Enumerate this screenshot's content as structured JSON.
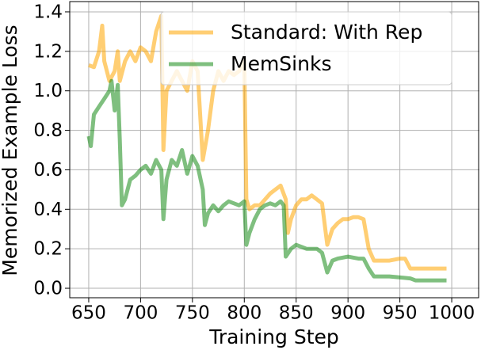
{
  "chart_data": {
    "type": "line",
    "xlabel": "Training Step",
    "ylabel": "Memorized Example Loss",
    "xlim": [
      631.7,
      1026.7
    ],
    "ylim": [
      -0.048,
      1.452
    ],
    "xticks": [
      650,
      700,
      750,
      800,
      850,
      900,
      950,
      1000
    ],
    "yticks": [
      {
        "value": 0,
        "label": "0.0"
      },
      0.2,
      0.4,
      0.6,
      0.8,
      {
        "value": 1,
        "label": "1.0"
      },
      1.2,
      1.4
    ],
    "grid": true,
    "legend": "upper right",
    "series": [
      {
        "name": "Standard: With Rep",
        "color": "#ffa500",
        "x": [
          650,
          655,
          660,
          663,
          665,
          670,
          675,
          678,
          680,
          685,
          690,
          695,
          700,
          705,
          710,
          715,
          720,
          722,
          725,
          730,
          735,
          740,
          745,
          750,
          755,
          760,
          765,
          770,
          775,
          780,
          785,
          790,
          795,
          800,
          802,
          805,
          810,
          815,
          820,
          825,
          830,
          835,
          840,
          842,
          845,
          850,
          855,
          860,
          865,
          870,
          875,
          880,
          885,
          890,
          895,
          900,
          905,
          910,
          915,
          920,
          925,
          930,
          940,
          950,
          955,
          960,
          970,
          980,
          995
        ],
        "values": [
          1.13,
          1.12,
          1.2,
          1.33,
          1.15,
          1.05,
          1.1,
          1.2,
          1.05,
          1.15,
          1.2,
          1.15,
          1.22,
          1.2,
          1.15,
          1.3,
          1.38,
          0.7,
          1.0,
          1.05,
          1.1,
          1.05,
          1.0,
          1.15,
          1.1,
          0.65,
          0.8,
          1.0,
          1.1,
          1.05,
          1.1,
          1.08,
          1.1,
          1.15,
          0.45,
          0.4,
          0.42,
          0.42,
          0.45,
          0.48,
          0.5,
          0.52,
          0.45,
          0.28,
          0.35,
          0.42,
          0.45,
          0.45,
          0.47,
          0.45,
          0.43,
          0.22,
          0.3,
          0.33,
          0.35,
          0.35,
          0.36,
          0.36,
          0.35,
          0.2,
          0.14,
          0.14,
          0.14,
          0.15,
          0.15,
          0.1,
          0.1,
          0.1,
          0.1
        ]
      },
      {
        "name": "MemSinks",
        "color": "#008000",
        "x": [
          650,
          652,
          655,
          660,
          665,
          670,
          672,
          675,
          678,
          680,
          682,
          685,
          690,
          695,
          700,
          705,
          710,
          715,
          720,
          722,
          725,
          730,
          735,
          740,
          745,
          750,
          755,
          760,
          762,
          765,
          770,
          775,
          780,
          785,
          790,
          795,
          800,
          802,
          805,
          810,
          815,
          820,
          825,
          830,
          835,
          838,
          840,
          845,
          850,
          855,
          860,
          865,
          870,
          875,
          880,
          885,
          890,
          900,
          910,
          915,
          920,
          925,
          940,
          960,
          965,
          980,
          995
        ],
        "values": [
          0.77,
          0.72,
          0.88,
          0.92,
          0.96,
          1.0,
          1.05,
          0.9,
          1.03,
          0.75,
          0.42,
          0.45,
          0.55,
          0.57,
          0.6,
          0.62,
          0.58,
          0.65,
          0.6,
          0.35,
          0.55,
          0.65,
          0.62,
          0.7,
          0.58,
          0.67,
          0.62,
          0.5,
          0.32,
          0.38,
          0.42,
          0.39,
          0.42,
          0.44,
          0.43,
          0.42,
          0.44,
          0.22,
          0.28,
          0.35,
          0.4,
          0.42,
          0.43,
          0.42,
          0.44,
          0.42,
          0.16,
          0.2,
          0.22,
          0.21,
          0.2,
          0.2,
          0.2,
          0.18,
          0.08,
          0.14,
          0.15,
          0.16,
          0.15,
          0.15,
          0.1,
          0.06,
          0.06,
          0.05,
          0.04,
          0.04,
          0.04
        ]
      }
    ]
  }
}
